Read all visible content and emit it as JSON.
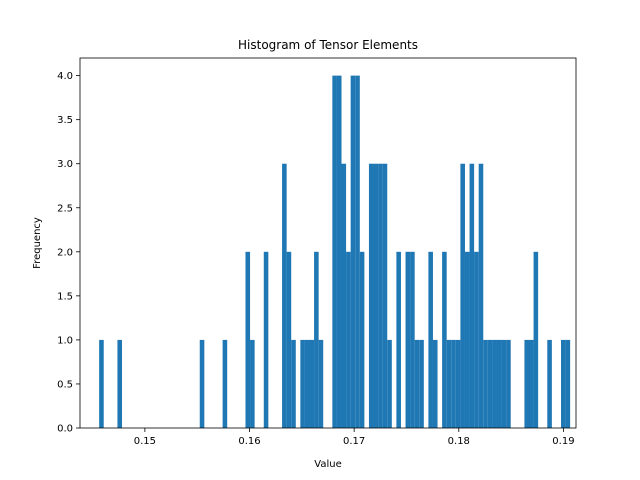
{
  "chart_data": {
    "type": "bar",
    "title": "Histogram of Tensor Elements",
    "xlabel": "Value",
    "ylabel": "Frequency",
    "xlim": [
      0.1438,
      0.1912
    ],
    "ylim": [
      0,
      4.2
    ],
    "xticks": [
      "0.15",
      "0.16",
      "0.17",
      "0.18",
      "0.19"
    ],
    "xtick_values": [
      0.15,
      0.16,
      0.17,
      0.18,
      0.19
    ],
    "yticks": [
      "0.0",
      "0.5",
      "1.0",
      "1.5",
      "2.0",
      "2.5",
      "3.0",
      "3.5",
      "4.0"
    ],
    "ytick_values": [
      0,
      0.5,
      1.0,
      1.5,
      2.0,
      2.5,
      3.0,
      3.5,
      4.0
    ],
    "bar_color": "#1f77b4",
    "bins": {
      "start": 0.14563,
      "width": 0.000437,
      "counts": [
        1,
        0,
        0,
        0,
        1,
        0,
        0,
        0,
        0,
        0,
        0,
        0,
        0,
        0,
        0,
        0,
        0,
        0,
        0,
        0,
        0,
        0,
        1,
        0,
        0,
        0,
        0,
        1,
        0,
        0,
        0,
        0,
        2,
        1,
        0,
        0,
        2,
        0,
        0,
        0,
        3,
        2,
        1,
        0,
        1,
        1,
        1,
        2,
        1,
        0,
        0,
        4,
        4,
        3,
        2,
        4,
        4,
        2,
        0,
        3,
        3,
        3,
        3,
        1,
        0,
        2,
        0,
        2,
        2,
        1,
        1,
        0,
        2,
        1,
        0,
        2,
        1,
        1,
        1,
        3,
        2,
        3,
        2,
        3,
        1,
        1,
        1,
        1,
        1,
        1,
        0,
        0,
        0,
        1,
        1,
        2,
        0,
        0,
        1,
        0,
        0,
        1,
        1
      ]
    }
  }
}
